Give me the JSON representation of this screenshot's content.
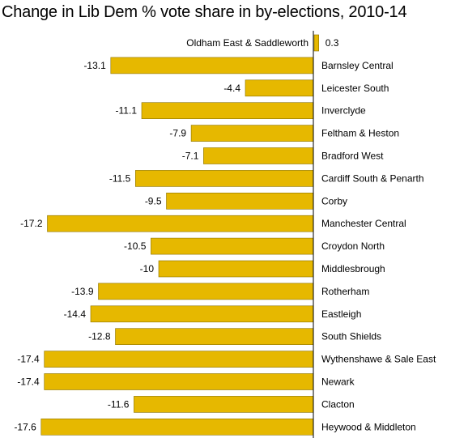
{
  "chart_data": {
    "type": "bar",
    "orientation": "horizontal",
    "title": "Change in Lib Dem % vote share in by-elections, 2010-14",
    "xlabel": "",
    "ylabel": "",
    "bar_color": "#e6b800",
    "bar_edge_color": "#8a7200",
    "axis_color": "#000000",
    "grid": false,
    "xlim": [
      -17.6,
      0.3
    ],
    "categories": [
      "Oldham East & Saddleworth",
      "Barnsley Central",
      "Leicester South",
      "Inverclyde",
      "Feltham & Heston",
      "Bradford West",
      "Cardiff South & Penarth",
      "Corby",
      "Manchester Central",
      "Croydon North",
      "Middlesbrough",
      "Rotherham",
      "Eastleigh",
      "South Shields",
      "Wythenshawe & Sale East",
      "Newark",
      "Clacton",
      "Heywood & Middleton"
    ],
    "values": [
      0.3,
      -13.1,
      -4.4,
      -11.1,
      -7.9,
      -7.1,
      -11.5,
      -9.5,
      -17.2,
      -10.5,
      -10,
      -13.9,
      -14.4,
      -12.8,
      -17.4,
      -17.4,
      -11.6,
      -17.6
    ],
    "value_labels": [
      "0.3",
      "-13.1",
      "-4.4",
      "-11.1",
      "-7.9",
      "-7.1",
      "-11.5",
      "-9.5",
      "-17.2",
      "-10.5",
      "-10",
      "-13.9",
      "-14.4",
      "-12.8",
      "-17.4",
      "-17.4",
      "-11.6",
      "-17.6"
    ]
  }
}
